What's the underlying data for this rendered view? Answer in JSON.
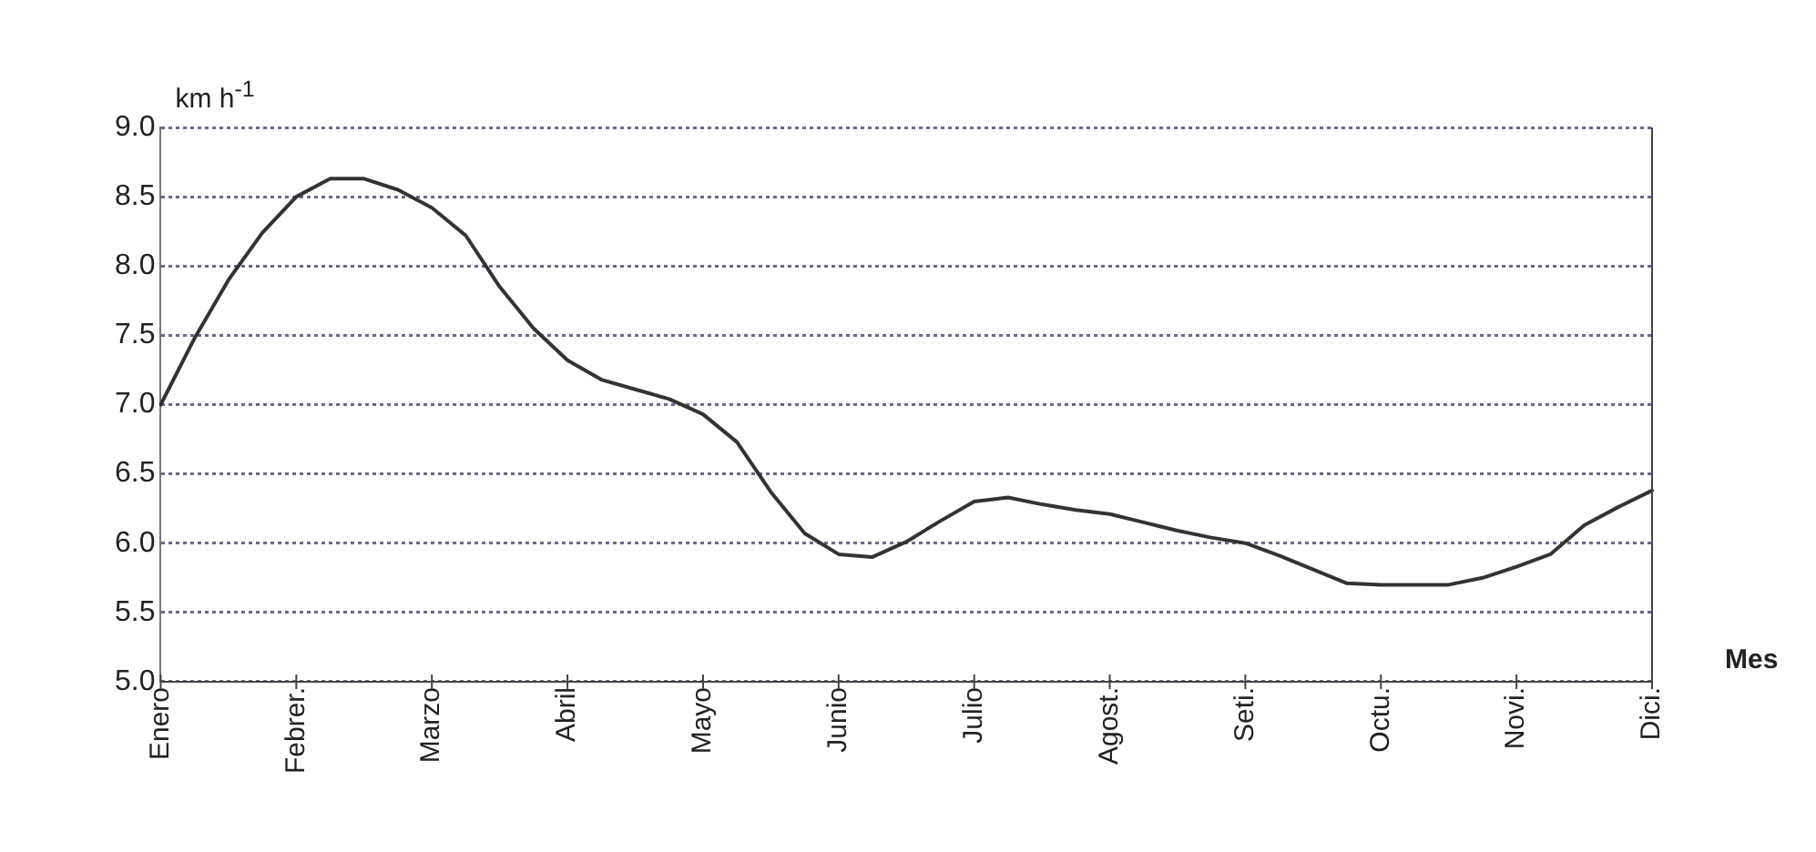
{
  "chart_data": {
    "type": "line",
    "ylabel": "km h$^{-1}$",
    "xlabel": "Mes",
    "categories": [
      "Enero",
      null,
      null,
      null,
      "Febrer.",
      null,
      null,
      null,
      "Marzo",
      null,
      null,
      null,
      "Abril",
      null,
      null,
      null,
      "Mayo",
      null,
      null,
      null,
      "Junio",
      null,
      null,
      null,
      "Julio",
      null,
      null,
      null,
      "Agost.",
      null,
      null,
      null,
      "Seti.",
      null,
      null,
      null,
      "Octu.",
      null,
      null,
      null,
      "Novi.",
      null,
      null,
      null,
      "Dici."
    ],
    "ylim": [
      5,
      9
    ],
    "yticks": [
      {
        "value": 5,
        "label": "5.0"
      },
      {
        "value": 5.5,
        "label": "5.5"
      },
      {
        "value": 6,
        "label": "6.0"
      },
      {
        "value": 6.5,
        "label": "6.5"
      },
      {
        "value": 7,
        "label": "7.0"
      },
      {
        "value": 7.5,
        "label": "7.5"
      },
      {
        "value": 8,
        "label": "8.0"
      },
      {
        "value": 8.5,
        "label": "8.5"
      },
      {
        "value": 9,
        "label": "9.0"
      }
    ],
    "series": [
      {
        "color": "#333333",
        "values": [
          7.0,
          7.48,
          7.9,
          8.24,
          8.5,
          8.63,
          8.63,
          8.55,
          8.42,
          8.22,
          7.85,
          7.55,
          7.32,
          7.18,
          7.11,
          7.04,
          6.93,
          6.73,
          6.37,
          6.07,
          5.92,
          5.9,
          6.01,
          6.16,
          6.3,
          6.33,
          6.28,
          6.24,
          6.21,
          6.15,
          6.09,
          6.04,
          6.0,
          5.91,
          5.81,
          5.71,
          5.7,
          5.7,
          5.7,
          5.75,
          5.83,
          5.92,
          6.13,
          6.26,
          6.38
        ]
      }
    ],
    "grid": "y",
    "legend": false,
    "marker": "none",
    "line_style": "solid"
  }
}
